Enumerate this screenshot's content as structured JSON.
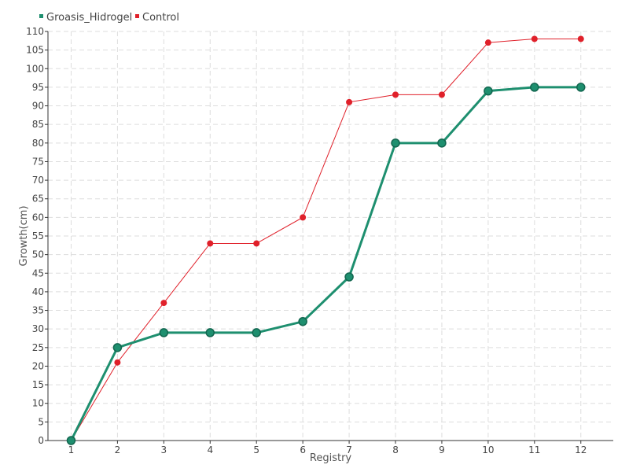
{
  "chart_data": {
    "type": "line",
    "title": "",
    "xlabel": "Registry",
    "ylabel": "Growth(cm)",
    "x": [
      1,
      2,
      3,
      4,
      5,
      6,
      7,
      8,
      9,
      10,
      11,
      12
    ],
    "ylim": [
      0,
      110
    ],
    "yticks": [
      0,
      5,
      10,
      15,
      20,
      25,
      30,
      35,
      40,
      45,
      50,
      55,
      60,
      65,
      70,
      75,
      80,
      85,
      90,
      95,
      100,
      105,
      110
    ],
    "grid": true,
    "legend_position": "top-left",
    "series": [
      {
        "name": "Groasis_Hidrogel",
        "color": "#1e8f6f",
        "values": [
          0,
          25,
          29,
          29,
          29,
          32,
          44,
          80,
          80,
          94,
          95,
          95
        ]
      },
      {
        "name": "Control",
        "color": "#e0202a",
        "values": [
          0,
          21,
          37,
          53,
          53,
          60,
          91,
          93,
          93,
          107,
          108,
          108
        ]
      }
    ]
  }
}
